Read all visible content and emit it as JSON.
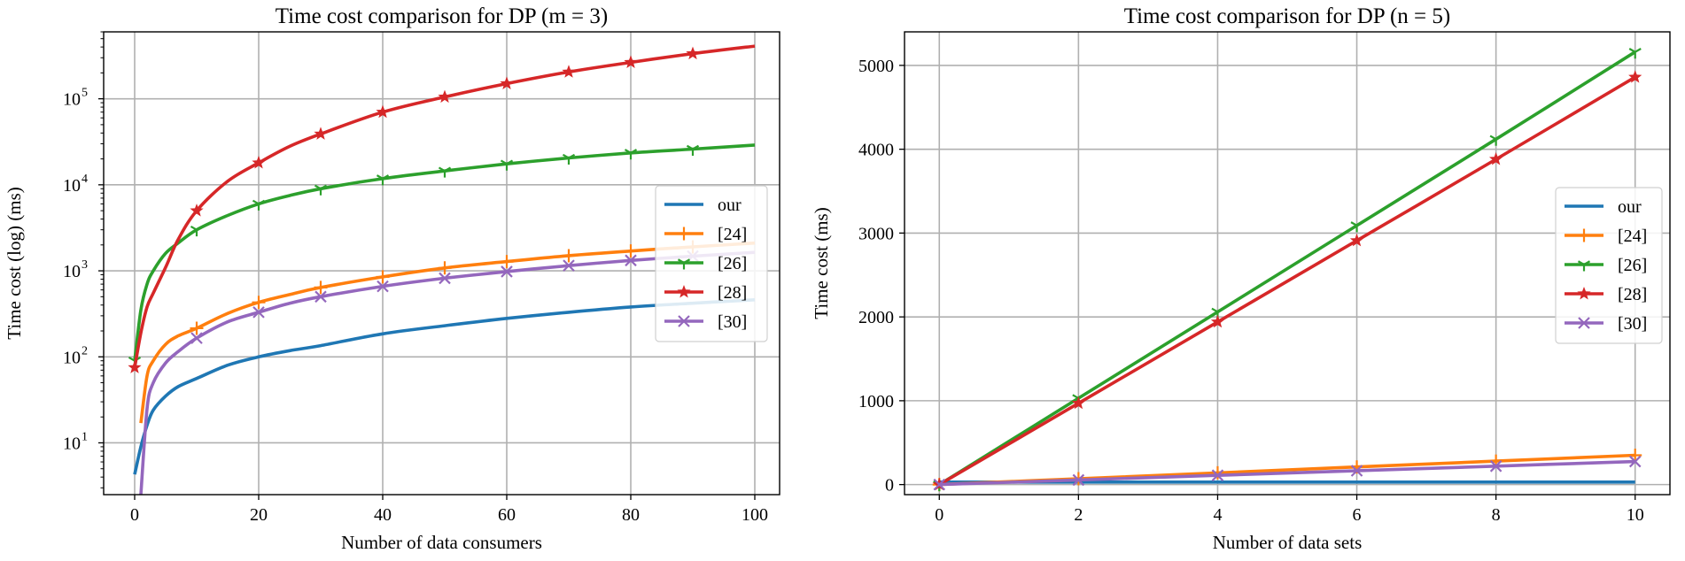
{
  "colors": {
    "our": "#1f77b4",
    "[24]": "#ff7f0e",
    "[26]": "#2ca02c",
    "[28]": "#d62728",
    "[30]": "#9467bd"
  },
  "chart_data": [
    {
      "type": "line",
      "yscale": "log",
      "title": "Time cost comparison for DP (m = 3)",
      "xlabel": "Number of data consumers",
      "ylabel": "Time cost (log)  (ms)",
      "xlim": [
        -5,
        104
      ],
      "ylim": [
        2.5,
        600000
      ],
      "xticks": [
        0,
        20,
        40,
        60,
        80,
        100
      ],
      "xtick_labels": [
        "0",
        "20",
        "40",
        "60",
        "80",
        "100"
      ],
      "yticks": [
        10,
        100,
        1000,
        10000,
        100000
      ],
      "ytick_labels": [
        {
          "base": "10",
          "exp": "1"
        },
        {
          "base": "10",
          "exp": "2"
        },
        {
          "base": "10",
          "exp": "3"
        },
        {
          "base": "10",
          "exp": "4"
        },
        {
          "base": "10",
          "exp": "5"
        }
      ],
      "grid": true,
      "legend": "center-right",
      "x": [
        0,
        1,
        2,
        3,
        5,
        7,
        10,
        15,
        20,
        25,
        30,
        40,
        50,
        60,
        70,
        80,
        90,
        100
      ],
      "series": [
        {
          "name": "our",
          "marker": "none",
          "values": [
            4.3,
            9,
            16,
            24,
            35,
            45,
            56,
            80,
            100,
            118,
            135,
            185,
            230,
            280,
            330,
            380,
            420,
            460
          ]
        },
        {
          "name": "[24]",
          "marker": "plus",
          "values": [
            null,
            17,
            60,
            90,
            140,
            175,
            215,
            320,
            430,
            530,
            640,
            850,
            1080,
            1280,
            1500,
            1700,
            1900,
            2100
          ]
        },
        {
          "name": "[26]",
          "marker": "tri",
          "values": [
            90,
            350,
            700,
            1000,
            1600,
            2100,
            3000,
            4400,
            6000,
            7500,
            9000,
            11800,
            14500,
            17500,
            20500,
            23500,
            26000,
            29000
          ]
        },
        {
          "name": "[28]",
          "marker": "star",
          "values": [
            75,
            190,
            380,
            550,
            1100,
            2300,
            5000,
            11000,
            18000,
            28000,
            39000,
            70000,
            105000,
            150000,
            205000,
            265000,
            335000,
            410000
          ]
        },
        {
          "name": "[30]",
          "marker": "x",
          "values": [
            null,
            2.5,
            25,
            50,
            85,
            115,
            165,
            255,
            330,
            420,
            500,
            660,
            820,
            980,
            1150,
            1320,
            1480,
            1640
          ]
        }
      ]
    },
    {
      "type": "line",
      "yscale": "linear",
      "title": "Time cost comparison for DP (n = 5)",
      "xlabel": "Number of data sets",
      "ylabel": "Time cost (ms)",
      "xlim": [
        -0.5,
        10.5
      ],
      "ylim": [
        -120,
        5400
      ],
      "xticks": [
        0,
        2,
        4,
        6,
        8,
        10
      ],
      "xtick_labels": [
        "0",
        "2",
        "4",
        "6",
        "8",
        "10"
      ],
      "yticks": [
        0,
        1000,
        2000,
        3000,
        4000,
        5000
      ],
      "ytick_labels": [
        "0",
        "1000",
        "2000",
        "3000",
        "4000",
        "5000"
      ],
      "grid": true,
      "legend": "center-right",
      "x": [
        0,
        2,
        4,
        6,
        8,
        10
      ],
      "series": [
        {
          "name": "our",
          "marker": "none",
          "values": [
            30,
            30,
            30,
            30,
            30,
            30
          ]
        },
        {
          "name": "[24]",
          "marker": "plus",
          "values": [
            0,
            70,
            140,
            210,
            280,
            350
          ]
        },
        {
          "name": "[26]",
          "marker": "tri",
          "values": [
            0,
            1030,
            2060,
            3090,
            4120,
            5160
          ]
        },
        {
          "name": "[28]",
          "marker": "star",
          "values": [
            0,
            970,
            1940,
            2910,
            3880,
            4860
          ]
        },
        {
          "name": "[30]",
          "marker": "x",
          "values": [
            0,
            55,
            110,
            165,
            220,
            275
          ]
        }
      ]
    }
  ]
}
